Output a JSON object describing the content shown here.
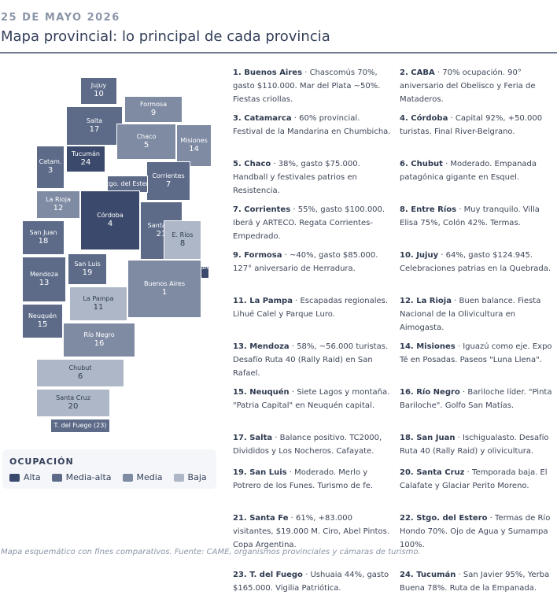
{
  "header": {
    "date": "25 DE MAYO 2026",
    "title": "Mapa provincial: lo principal de cada provincia"
  },
  "colors": {
    "Alta": "#3b4a6c",
    "Media-alta": "#5d6b89",
    "Media": "#7f8ba3",
    "Baja": "#aeb7c7"
  },
  "map": {
    "provinces": [
      {
        "key": "jujuy",
        "name": "Jujuy",
        "rank": "10",
        "level": "media-alta"
      },
      {
        "key": "formosa",
        "name": "Formosa",
        "rank": "9",
        "level": "media"
      },
      {
        "key": "salta",
        "name": "Salta",
        "rank": "17",
        "level": "media-alta"
      },
      {
        "key": "chaco",
        "name": "Chaco",
        "rank": "5",
        "level": "media"
      },
      {
        "key": "misiones",
        "name": "Misiones",
        "rank": "14",
        "level": "media"
      },
      {
        "key": "catamarca",
        "name": "Catam.",
        "rank": "3",
        "level": "media-alta"
      },
      {
        "key": "tucuman",
        "name": "Tucumán",
        "rank": "24",
        "level": "alta"
      },
      {
        "key": "corrientes",
        "name": "Corrientes",
        "rank": "7",
        "level": "media-alta"
      },
      {
        "key": "santiago",
        "name": "Stgo. del Estero",
        "rank": "",
        "level": "media-alta"
      },
      {
        "key": "la-rioja",
        "name": "La Rioja",
        "rank": "12",
        "level": "media"
      },
      {
        "key": "cordoba",
        "name": "Córdoba",
        "rank": "4",
        "level": "alta"
      },
      {
        "key": "santa-fe",
        "name": "Santa Fe",
        "rank": "21",
        "level": "media-alta"
      },
      {
        "key": "entre-rios",
        "name": "E. Ríos",
        "rank": "8",
        "level": "baja"
      },
      {
        "key": "san-juan",
        "name": "San Juan",
        "rank": "18",
        "level": "media-alta"
      },
      {
        "key": "san-luis",
        "name": "San Luis",
        "rank": "19",
        "level": "media-alta"
      },
      {
        "key": "caba",
        "name": "CABA",
        "rank": "2",
        "level": "alta"
      },
      {
        "key": "mendoza",
        "name": "Mendoza",
        "rank": "13",
        "level": "media-alta"
      },
      {
        "key": "buenos-aires",
        "name": "Buenos Aires",
        "rank": "1",
        "level": "media"
      },
      {
        "key": "la-pampa",
        "name": "La Pampa",
        "rank": "11",
        "level": "baja"
      },
      {
        "key": "neuquen",
        "name": "Neuquén",
        "rank": "15",
        "level": "media-alta"
      },
      {
        "key": "rio-negro",
        "name": "Río Negro",
        "rank": "16",
        "level": "media"
      },
      {
        "key": "chubut",
        "name": "Chubut",
        "rank": "6",
        "level": "baja"
      },
      {
        "key": "santa-cruz",
        "name": "Santa Cruz",
        "rank": "20",
        "level": "baja"
      },
      {
        "key": "tierra-del-fuego",
        "name": "T. del Fuego (23)",
        "rank": "",
        "level": "media-alta"
      }
    ]
  },
  "legend": {
    "title": "OCUPACIÓN",
    "items": [
      {
        "label": "Alta",
        "color": "#3b4a6c"
      },
      {
        "label": "Media-alta",
        "color": "#5d6b89"
      },
      {
        "label": "Media",
        "color": "#7f8ba3"
      },
      {
        "label": "Baja",
        "color": "#aeb7c7"
      }
    ]
  },
  "list": [
    {
      "n": "1.",
      "name": "Buenos Aires",
      "text": " · Chascomús 70%, gasto $110.000. Mar del Plata ~50%. Fiestas criollas."
    },
    {
      "n": "2.",
      "name": "CABA",
      "text": " · 70% ocupación. 90° aniversario del Obelisco y Feria de Mataderos."
    },
    {
      "n": "3.",
      "name": "Catamarca",
      "text": " · 60% provincial. Festival de la Mandarina en Chumbicha."
    },
    {
      "n": "4.",
      "name": "Córdoba",
      "text": " · Capital 92%, +50.000 turistas. Final River-Belgrano."
    },
    {
      "n": "5.",
      "name": "Chaco",
      "text": " · 38%, gasto $75.000. Handball y festivales patrios en Resistencia."
    },
    {
      "n": "6.",
      "name": "Chubut",
      "text": " · Moderado. Empanada patagónica gigante en Esquel."
    },
    {
      "n": "7.",
      "name": "Corrientes",
      "text": " · 55%, gasto $100.000. Iberá y ARTECO. Regata Corrientes-Empedrado."
    },
    {
      "n": "8.",
      "name": "Entre Ríos",
      "text": " · Muy tranquilo. Villa Elisa 75%, Colón 42%. Termas."
    },
    {
      "n": "9.",
      "name": "Formosa",
      "text": " · ~40%, gasto $85.000. 127° aniversario de Herradura."
    },
    {
      "n": "10.",
      "name": "Jujuy",
      "text": " · 64%, gasto $124.945. Celebraciones patrias en la Quebrada."
    },
    {
      "n": "11.",
      "name": "La Pampa",
      "text": " · Escapadas regionales. Lihué Calel y Parque Luro."
    },
    {
      "n": "12.",
      "name": "La Rioja",
      "text": " · Buen balance. Fiesta Nacional de la Olivicultura en Aimogasta."
    },
    {
      "n": "13.",
      "name": "Mendoza",
      "text": " · 58%, ~56.000 turistas. Desafío Ruta 40 (Rally Raid) en San Rafael."
    },
    {
      "n": "14.",
      "name": "Misiones",
      "text": " · Iguazú como eje. Expo Té en Posadas. Paseos \"Luna Llena\"."
    },
    {
      "n": "15.",
      "name": "Neuquén",
      "text": " · Siete Lagos y montaña. \"Patria Capital\" en Neuquén capital."
    },
    {
      "n": "16.",
      "name": "Río Negro",
      "text": " · Bariloche líder. \"Pinta Bariloche\". Golfo San Matías."
    },
    {
      "n": "17.",
      "name": "Salta",
      "text": " · Balance positivo. TC2000, Divididos y Los Nocheros. Cafayate."
    },
    {
      "n": "18.",
      "name": "San Juan",
      "text": " · Ischigualasto. Desafío Ruta 40 (Rally Raid) y olivicultura."
    },
    {
      "n": "19.",
      "name": "San Luis",
      "text": " · Moderado. Merlo y Potrero de los Funes. Turismo de fe."
    },
    {
      "n": "20.",
      "name": "Santa Cruz",
      "text": " · Temporada baja. El Calafate y Glaciar Perito Moreno."
    },
    {
      "n": "21.",
      "name": "Santa Fe",
      "text": " · 61%, +83.000 visitantes, $19.000 M. Ciro, Abel Pintos. Copa Argentina."
    },
    {
      "n": "22.",
      "name": "Stgo. del Estero",
      "text": " · Termas de Río Hondo 70%. Ojo de Agua y Sumampa 100%."
    },
    {
      "n": "23.",
      "name": "T. del Fuego",
      "text": " · Ushuaia 44%, gasto $165.000. Vigilia Patriótica."
    },
    {
      "n": "24.",
      "name": "Tucumán",
      "text": " · San Javier 95%, Yerba Buena 78%. Ruta de la Empanada."
    }
  ],
  "footer": {
    "note": "Mapa esquemático con fines comparativos. Fuente: CAME, organismos provinciales y cámaras de turismo."
  }
}
